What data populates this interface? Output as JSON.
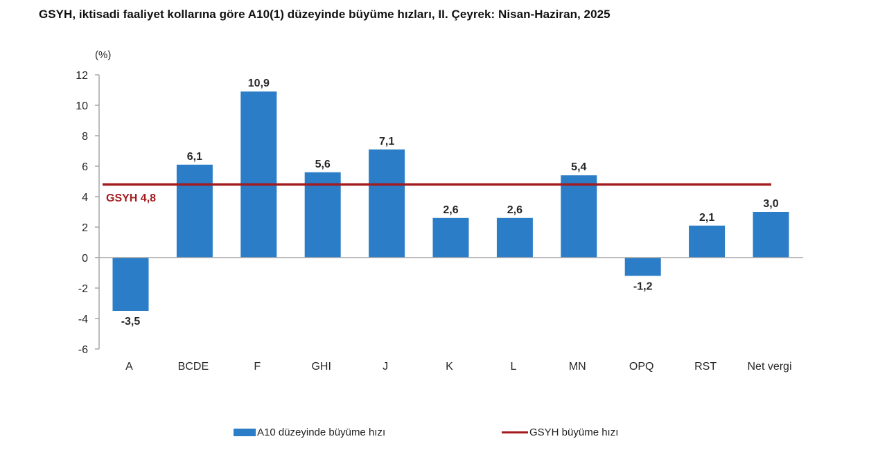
{
  "title": "GSYH, iktisadi faaliyet kollarına göre A10(1) düzeyinde büyüme hızları, II. Çeyrek: Nisan-Haziran, 2025",
  "colors": {
    "bar": "#2a7dc6",
    "line": "#a31b1f",
    "axis": "#a6a6a6",
    "text": "#262626"
  },
  "chart_data": {
    "type": "bar",
    "title": "GSYH, iktisadi faaliyet kollarına göre A10(1) düzeyinde büyüme hızları, II. Çeyrek: Nisan-Haziran, 2025",
    "xlabel": "",
    "ylabel": "(%)",
    "ylim": [
      -6,
      12
    ],
    "yticks": [
      12,
      10,
      8,
      6,
      4,
      2,
      0,
      -2,
      -4,
      -6
    ],
    "grid": false,
    "legend_position": "bottom",
    "categories": [
      "A",
      "BCDE",
      "F",
      "GHI",
      "J",
      "K",
      "L",
      "MN",
      "OPQ",
      "RST",
      "Net vergi"
    ],
    "series": [
      {
        "name": "A10 düzeyinde büyüme hızı",
        "type": "bar",
        "values": [
          -3.5,
          6.1,
          10.9,
          5.6,
          7.1,
          2.6,
          2.6,
          5.4,
          -1.2,
          2.1,
          3.0
        ],
        "labels": [
          "-3,5",
          "6,1",
          "10,9",
          "5,6",
          "7,1",
          "2,6",
          "2,6",
          "5,4",
          "-1,2",
          "2,1",
          "3,0"
        ]
      },
      {
        "name": "GSYH büyüme hızı",
        "type": "line",
        "value": 4.8,
        "label": "GSYH 4,8"
      }
    ],
    "annotations": [
      "GSYH 4,8"
    ]
  },
  "legend": {
    "bar_label": "A10 düzeyinde büyüme hızı",
    "line_label": "GSYH büyüme hızı"
  }
}
